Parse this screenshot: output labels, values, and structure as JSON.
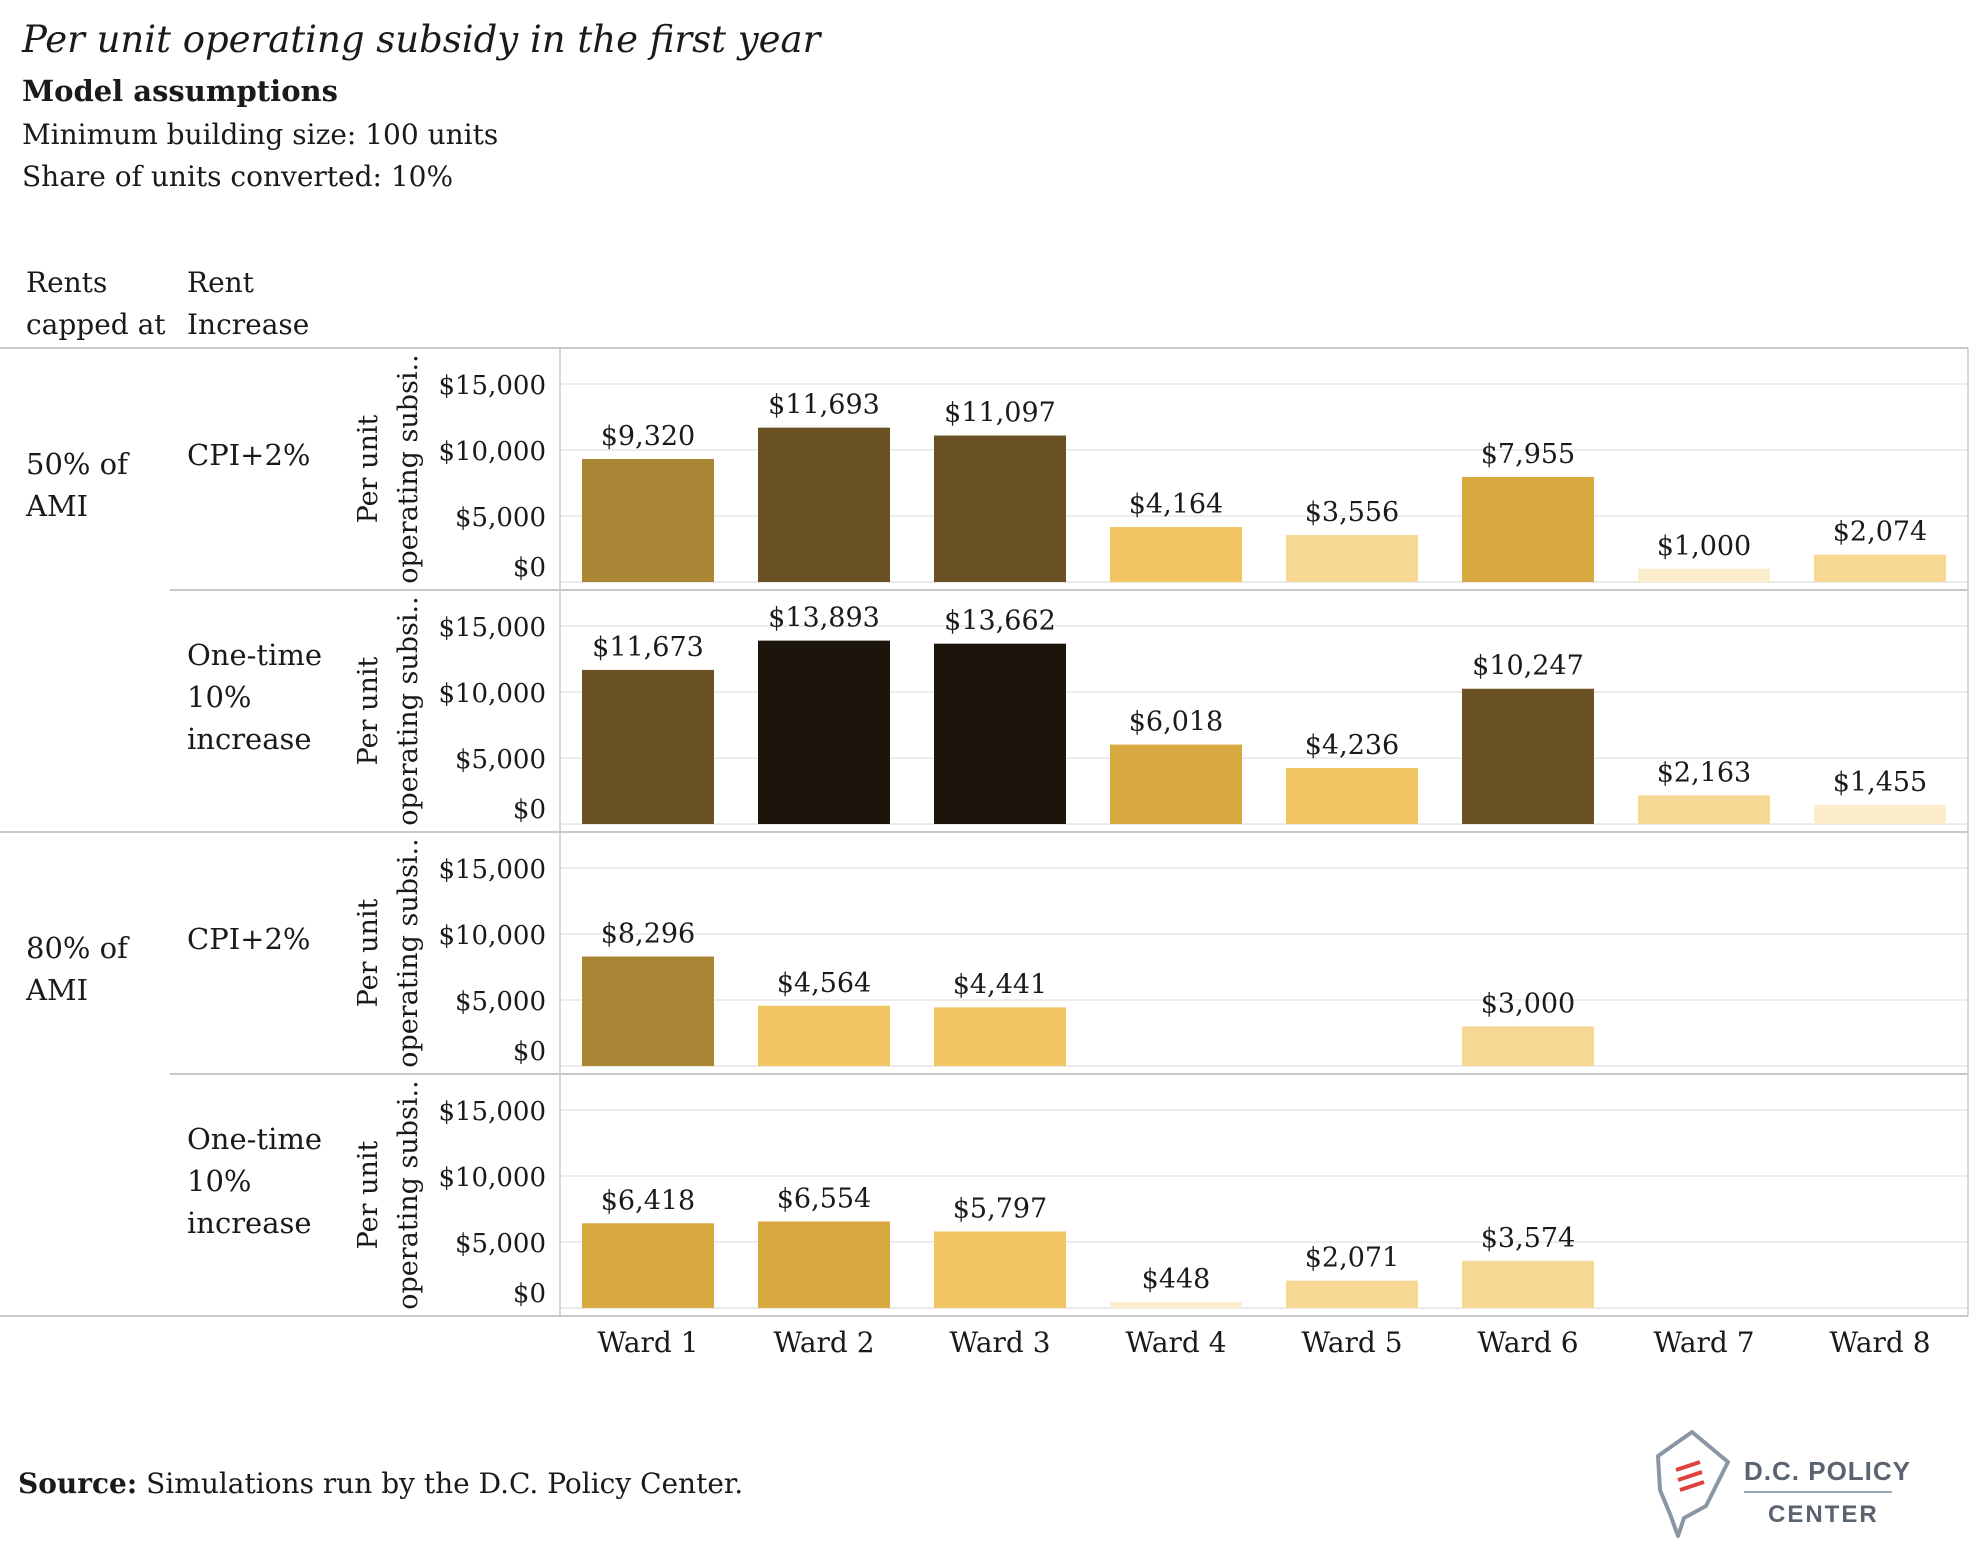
{
  "title": "Per unit operating subsidy in the first year",
  "subtitle": "Model assumptions",
  "assumptions": [
    "Minimum building size: 100 units",
    "Share of units converted: 10%"
  ],
  "row_headers": {
    "col1": [
      "Rents",
      "capped at"
    ],
    "col2": [
      "Rent",
      "Increase"
    ]
  },
  "yaxis_label": [
    "Per unit",
    "operating subsi.."
  ],
  "footer": {
    "source_label": "Source:",
    "source_text": "Simulations run by the D.C. Policy Center."
  },
  "logo": {
    "line1": "D.C. POLICY",
    "line2": "CENTER"
  },
  "colors": {
    "ramp": [
      "#fbeccb",
      "#f7d794",
      "#f1c561",
      "#d9a941",
      "#a98536",
      "#6a5124",
      "#1c150b"
    ],
    "grid": "#e6e6e6",
    "divider": "#c8c8c8",
    "logo_text": "#5a6470",
    "logo_accent": "#e0413c"
  },
  "chart_data": {
    "type": "bar",
    "categories": [
      "Ward 1",
      "Ward 2",
      "Ward 3",
      "Ward 4",
      "Ward 5",
      "Ward 6",
      "Ward 7",
      "Ward 8"
    ],
    "ylim": [
      0,
      15000
    ],
    "yticks": [
      "$15,000",
      "$10,000",
      "$5,000",
      "$0"
    ],
    "ytick_values": [
      15000,
      10000,
      5000,
      0
    ],
    "color_encodes": "value",
    "panels": [
      {
        "rents_capped_at": [
          "50% of",
          "AMI"
        ],
        "rent_increase": [
          "CPI+2%"
        ],
        "values": [
          9320,
          11693,
          11097,
          4164,
          3556,
          7955,
          1000,
          2074
        ],
        "labels": [
          "$9,320",
          "$11,693",
          "$11,097",
          "$4,164",
          "$3,556",
          "$7,955",
          "$1,000",
          "$2,074"
        ]
      },
      {
        "rents_capped_at": [],
        "rent_increase": [
          "One-time",
          "10%",
          "increase"
        ],
        "values": [
          11673,
          13893,
          13662,
          6018,
          4236,
          10247,
          2163,
          1455
        ],
        "labels": [
          "$11,673",
          "$13,893",
          "$13,662",
          "$6,018",
          "$4,236",
          "$10,247",
          "$2,163",
          "$1,455"
        ]
      },
      {
        "rents_capped_at": [
          "80% of",
          "AMI"
        ],
        "rent_increase": [
          "CPI+2%"
        ],
        "values": [
          8296,
          4564,
          4441,
          null,
          null,
          3000,
          null,
          null
        ],
        "labels": [
          "$8,296",
          "$4,564",
          "$4,441",
          "",
          "",
          "$3,000",
          "",
          ""
        ]
      },
      {
        "rents_capped_at": [],
        "rent_increase": [
          "One-time",
          "10%",
          "increase"
        ],
        "values": [
          6418,
          6554,
          5797,
          448,
          2071,
          3574,
          null,
          null
        ],
        "labels": [
          "$6,418",
          "$6,554",
          "$5,797",
          "$448",
          "$2,071",
          "$3,574",
          "",
          ""
        ]
      }
    ]
  }
}
